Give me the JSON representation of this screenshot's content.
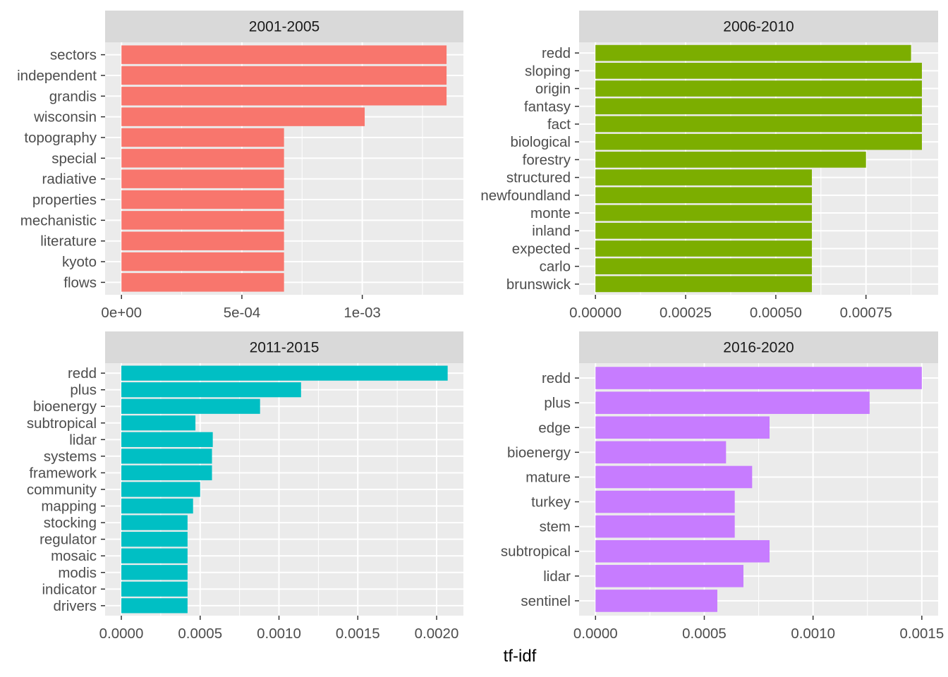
{
  "chart_data": [
    {
      "type": "bar",
      "orientation": "horizontal",
      "title": "2001-2005",
      "color": "#F8766D",
      "categories": [
        "sectors",
        "independent",
        "grandis",
        "wisconsin",
        "topography",
        "special",
        "radiative",
        "properties",
        "mechanistic",
        "literature",
        "kyoto",
        "flows"
      ],
      "values": [
        0.00135,
        0.00135,
        0.00135,
        0.00101,
        0.000675,
        0.000675,
        0.000675,
        0.000675,
        0.000675,
        0.000675,
        0.000675,
        0.000675
      ],
      "xlim": [
        -6.8e-05,
        0.00142
      ],
      "ticks": [
        0,
        0.0005,
        0.001
      ],
      "tick_labels": [
        "0e+00",
        "5e-04",
        "1e-03"
      ],
      "minor_ticks": [
        0.00025,
        0.00075,
        0.00125
      ]
    },
    {
      "type": "bar",
      "orientation": "horizontal",
      "title": "2006-2010",
      "color": "#7CAE00",
      "categories": [
        "redd",
        "sloping",
        "origin",
        "fantasy",
        "fact",
        "biological",
        "forestry",
        "structured",
        "newfoundland",
        "monte",
        "inland",
        "expected",
        "carlo",
        "brunswick"
      ],
      "values": [
        0.000875,
        0.000905,
        0.000905,
        0.000905,
        0.000905,
        0.000905,
        0.00075,
        0.0006,
        0.0006,
        0.0006,
        0.0006,
        0.0006,
        0.0006,
        0.0006
      ],
      "xlim": [
        -4.53e-05,
        0.00095
      ],
      "ticks": [
        0,
        0.00025,
        0.0005,
        0.00075
      ],
      "tick_labels": [
        "0.00000",
        "0.00025",
        "0.00050",
        "0.00075"
      ],
      "minor_ticks": [
        0.000125,
        0.000375,
        0.000625,
        0.000875
      ]
    },
    {
      "type": "bar",
      "orientation": "horizontal",
      "title": "2011-2015",
      "color": "#00BFC4",
      "categories": [
        "redd",
        "plus",
        "bioenergy",
        "subtropical",
        "lidar",
        "systems",
        "framework",
        "community",
        "mapping",
        "stocking",
        "regulator",
        "mosaic",
        "modis",
        "indicator",
        "drivers"
      ],
      "values": [
        0.00207,
        0.00114,
        0.00088,
        0.00047,
        0.00058,
        0.000575,
        0.000575,
        0.0005,
        0.000455,
        0.00042,
        0.00042,
        0.00042,
        0.00042,
        0.00042,
        0.00042
      ],
      "xlim": [
        -0.000103,
        0.00217
      ],
      "ticks": [
        0,
        0.0005,
        0.001,
        0.0015,
        0.002
      ],
      "tick_labels": [
        "0.0000",
        "0.0005",
        "0.0010",
        "0.0015",
        "0.0020"
      ],
      "minor_ticks": [
        0.00025,
        0.00075,
        0.00125,
        0.00175
      ]
    },
    {
      "type": "bar",
      "orientation": "horizontal",
      "title": "2016-2020",
      "color": "#C77CFF",
      "categories": [
        "redd",
        "plus",
        "edge",
        "bioenergy",
        "mature",
        "turkey",
        "stem",
        "subtropical",
        "lidar",
        "sentinel"
      ],
      "values": [
        0.0015,
        0.00126,
        0.0008,
        0.0006,
        0.00072,
        0.00064,
        0.00064,
        0.0008,
        0.00068,
        0.00056
      ],
      "xlim": [
        -7.55e-05,
        0.001575
      ],
      "ticks": [
        0,
        0.0005,
        0.001,
        0.0015
      ],
      "tick_labels": [
        "0.0000",
        "0.0005",
        "0.0010",
        "0.0015"
      ],
      "minor_ticks": [
        0.00025,
        0.00075,
        0.00125
      ]
    }
  ],
  "xlabel": "tf-idf",
  "ylabel": "",
  "grid": true,
  "legend": "none",
  "colors": {
    "panel_background": "#EBEBEB",
    "strip_background": "#D9D9D9",
    "grid": "#FFFFFF",
    "text": "#4D4D4D"
  }
}
